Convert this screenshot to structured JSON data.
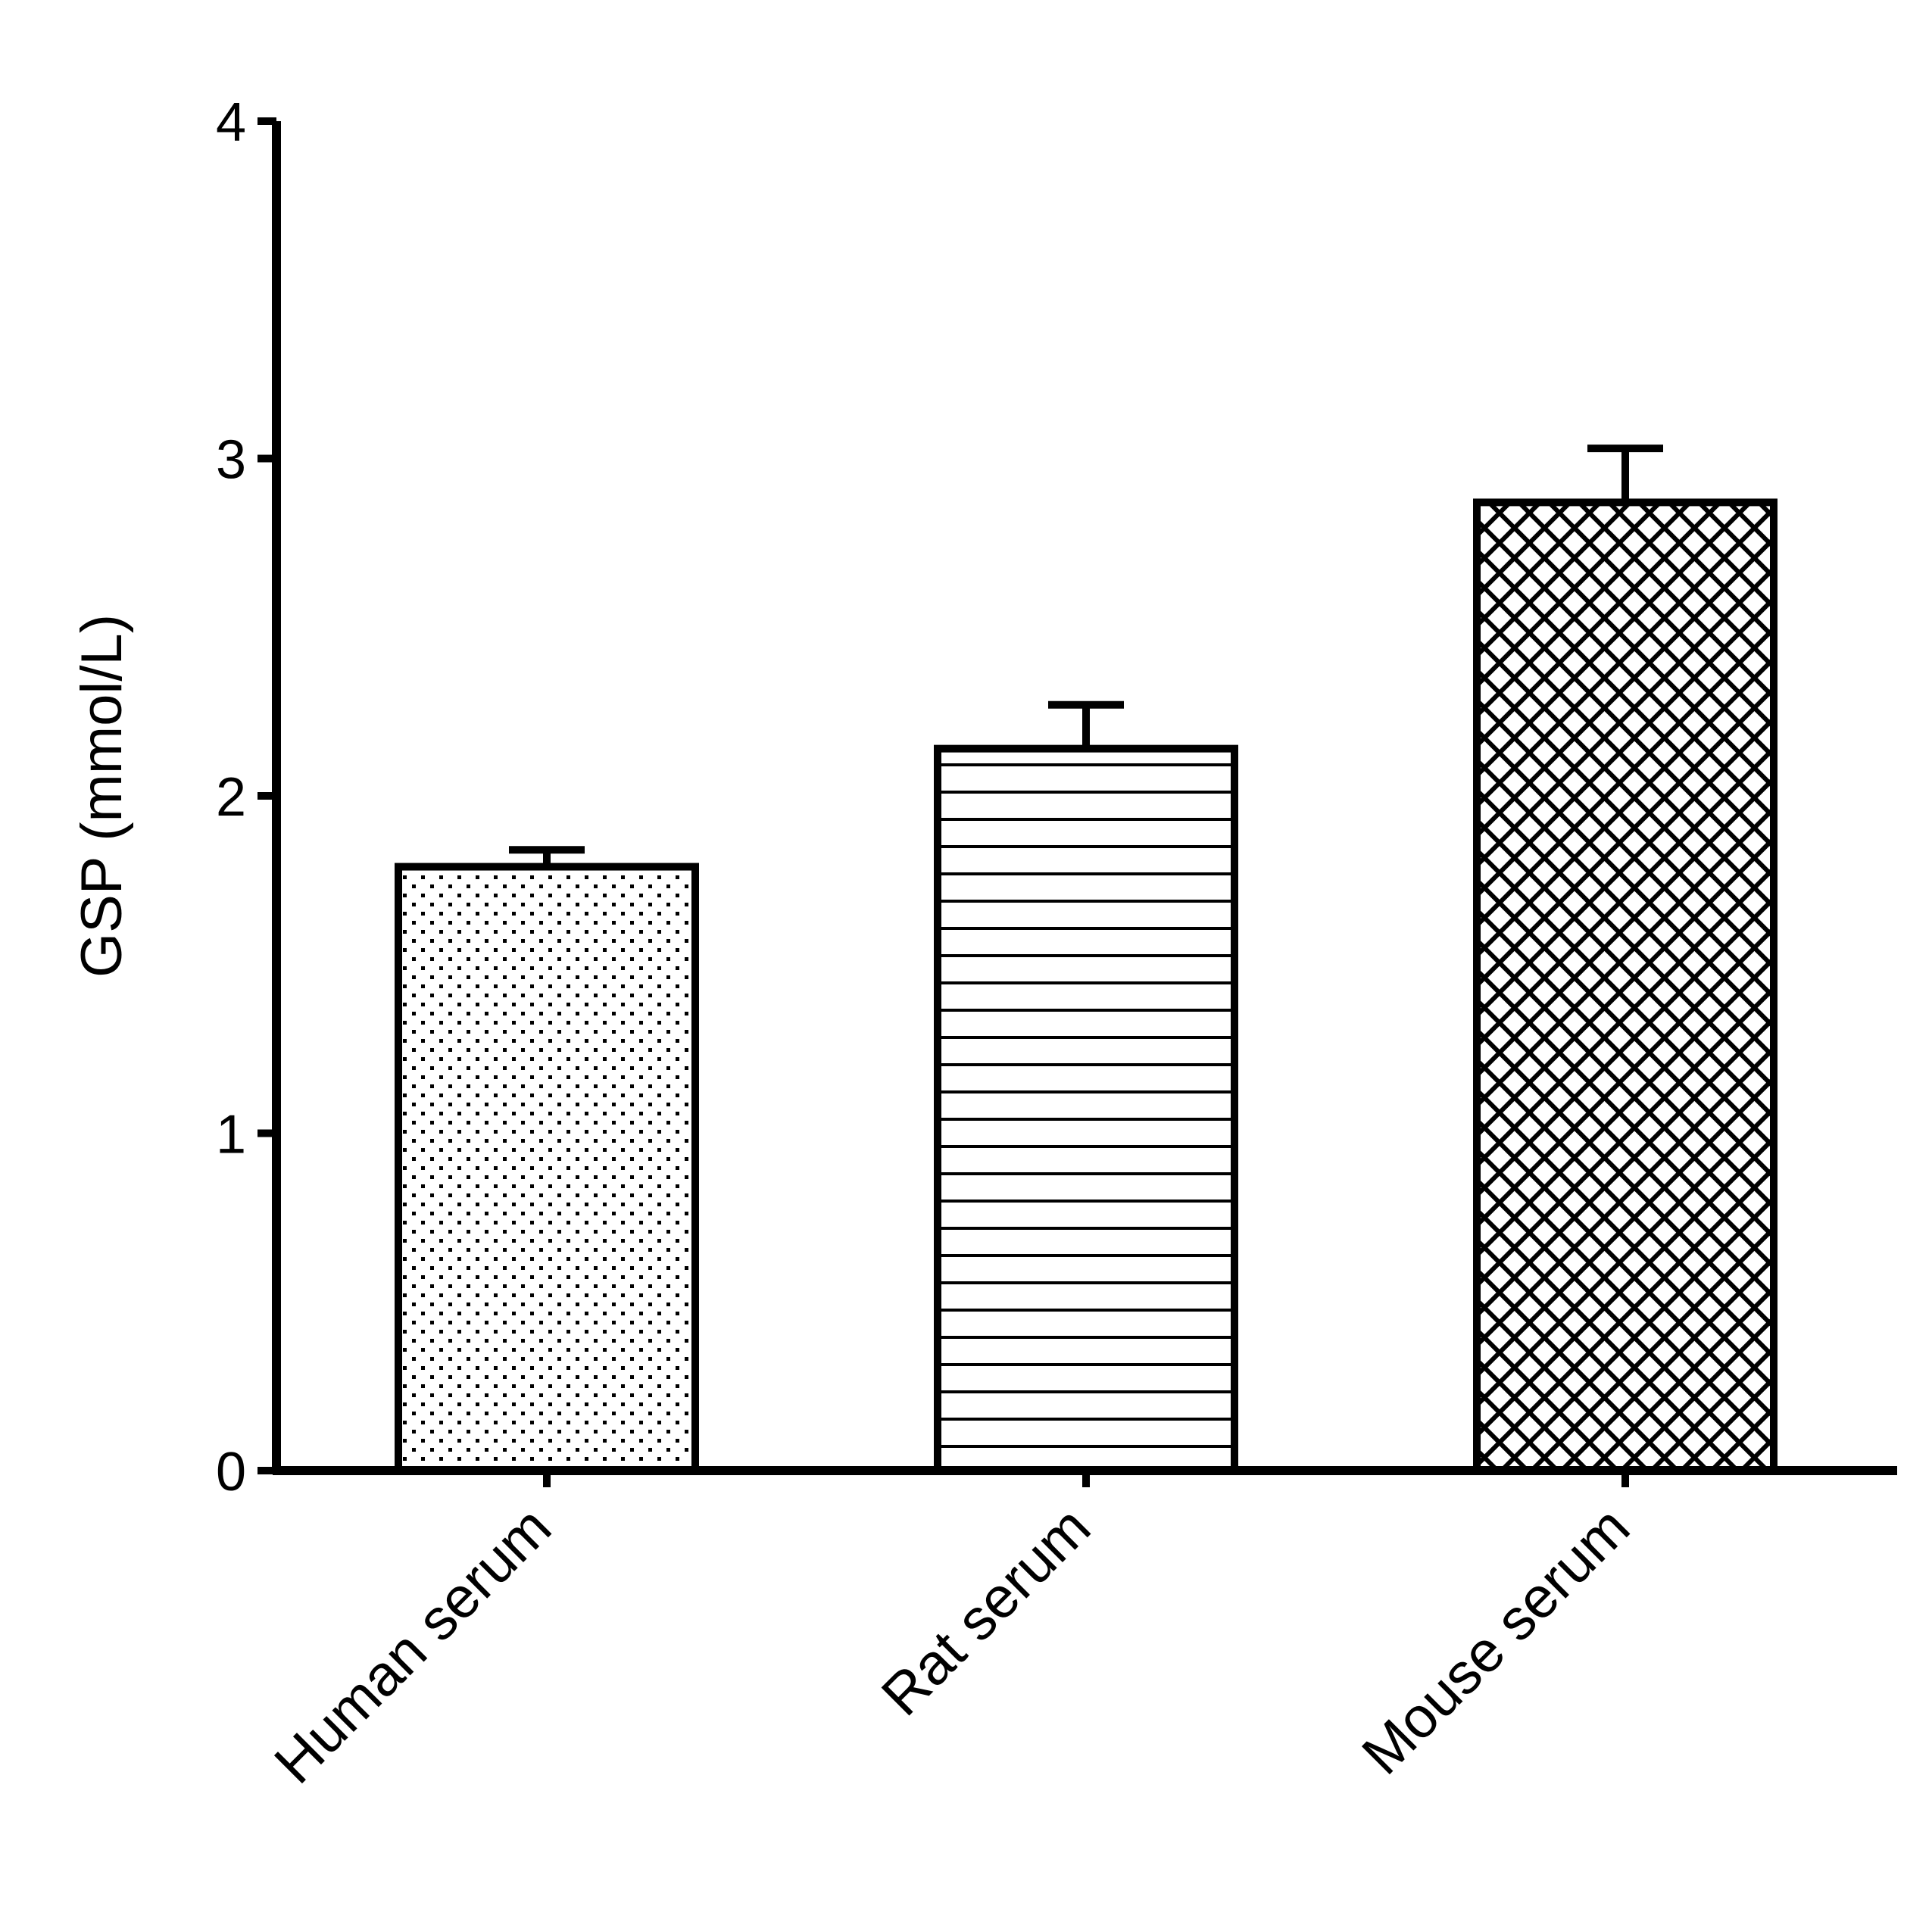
{
  "chart_data": {
    "type": "bar",
    "title": "",
    "xlabel": "",
    "ylabel": "GSP (mmol/L)",
    "ylim": [
      0,
      4
    ],
    "yticks": [
      0,
      1,
      2,
      3,
      4
    ],
    "categories": [
      "Human serum",
      "Rat serum",
      "Mouse serum"
    ],
    "values": [
      1.79,
      2.14,
      2.87
    ],
    "errors": [
      0.05,
      0.13,
      0.16
    ],
    "patterns": [
      "dots",
      "horizontal-lines",
      "crosshatch"
    ],
    "grid": false,
    "legend": null
  },
  "colors": {
    "stroke": "#000000",
    "fill": "#ffffff"
  }
}
